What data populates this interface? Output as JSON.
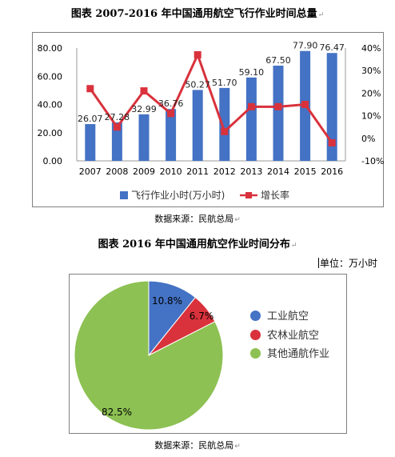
{
  "title1": "图表  2007-2016 年中国通用航空飞行作业时间总量",
  "title2": "图表  2016 年中国通用航空作业时间分布",
  "source_label": "数据来源：民航总局",
  "unit_label": "单位：万小时",
  "colors": {
    "bar": "#4472C4",
    "line": "#D9323C",
    "pie_industry": "#4472C4",
    "pie_agri": "#D9323C",
    "pie_other": "#8DC153"
  },
  "chart_data": [
    {
      "type": "bar",
      "categories": [
        "2007",
        "2008",
        "2009",
        "2010",
        "2011",
        "2012",
        "2013",
        "2014",
        "2015",
        "2016"
      ],
      "series": [
        {
          "name": "飞行作业小时(万小时)",
          "type": "bar",
          "axis": "left",
          "values": [
            26.07,
            27.28,
            32.99,
            36.76,
            50.27,
            51.7,
            59.1,
            67.5,
            77.9,
            76.47
          ],
          "labels": [
            "26.07",
            "27.28",
            "32.99",
            "36.76",
            "50.27",
            "51.70",
            "59.10",
            "67.50",
            "77.90",
            "76.47"
          ]
        },
        {
          "name": "增长率",
          "type": "line",
          "axis": "right",
          "values": [
            22,
            5,
            21,
            11,
            37,
            3,
            14,
            14,
            15,
            -2
          ]
        }
      ],
      "ylim": [
        0,
        80
      ],
      "yticks": [
        "0.00",
        "20.00",
        "40.00",
        "60.00",
        "80.00"
      ],
      "y2lim": [
        -10,
        40
      ],
      "y2ticks": [
        "-10%",
        "0%",
        "10%",
        "20%",
        "30%",
        "40%"
      ],
      "grid": false,
      "legend": "bottom"
    },
    {
      "type": "pie",
      "slices": [
        {
          "name": "工业航空",
          "value": 10.8,
          "label": "10.8%"
        },
        {
          "name": "农林业航空",
          "value": 6.7,
          "label": "6.7%"
        },
        {
          "name": "其他通航作业",
          "value": 82.5,
          "label": "82.5%"
        }
      ],
      "legend": "right"
    }
  ]
}
